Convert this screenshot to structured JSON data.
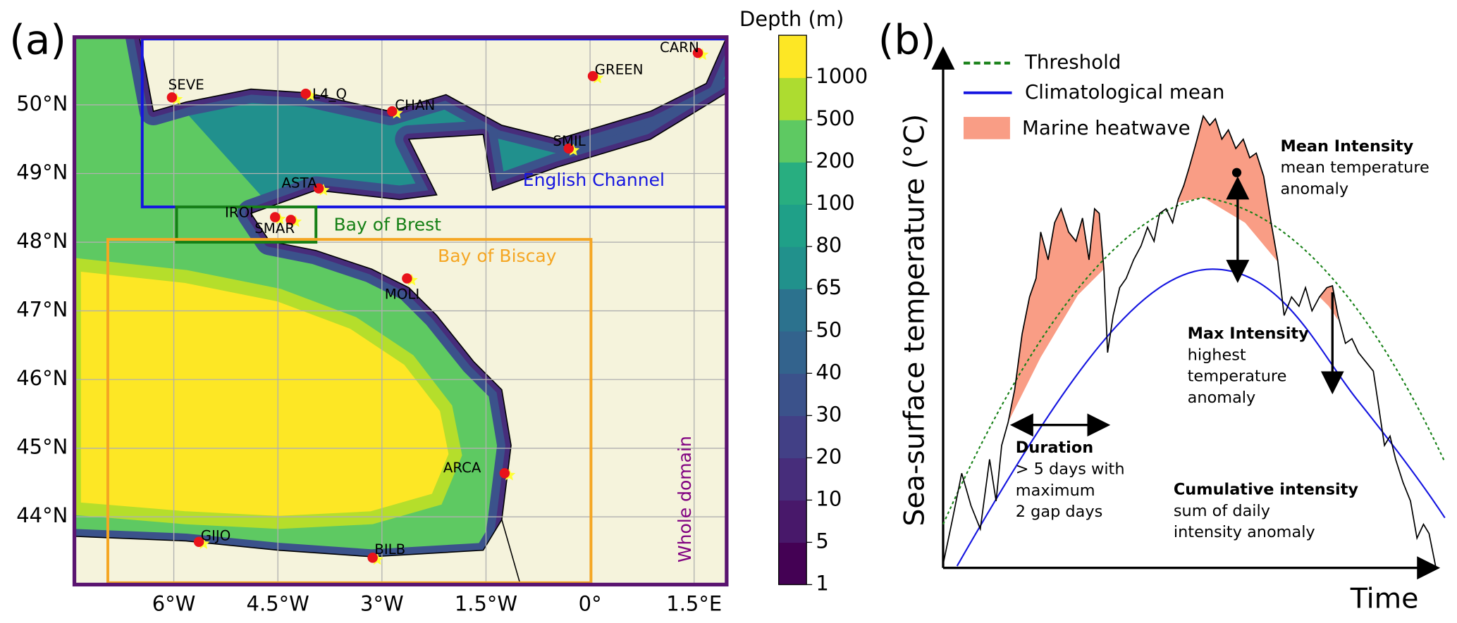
{
  "panel_a": {
    "label": "(a)",
    "colorbar_title": "Depth (m)",
    "colorbar_ticks": [
      1,
      5,
      10,
      20,
      30,
      40,
      50,
      65,
      80,
      100,
      200,
      500,
      1000
    ],
    "lon_ticks": [
      "6°W",
      "4.5°W",
      "3°W",
      "1.5°W",
      "0°",
      "1.5°E"
    ],
    "lat_ticks": [
      "50°N",
      "49°N",
      "48°N",
      "47°N",
      "46°N",
      "45°N",
      "44°N"
    ],
    "stations": [
      "SEVE",
      "L4_Q",
      "CHAN",
      "GREEN",
      "CARN",
      "SMIL",
      "ASTA",
      "IROI",
      "SMAR",
      "MOLI",
      "ARCA",
      "GIJO",
      "BILB"
    ],
    "regions": [
      "English Channel",
      "Bay of Brest",
      "Bay of Biscay",
      "Whole domain"
    ]
  },
  "panel_b": {
    "label": "(b)",
    "y_label": "Sea-surface temperature (°C)",
    "x_label": "Time",
    "legend": [
      "Threshold",
      "Climatological mean",
      "Marine heatwave"
    ],
    "annotations": [
      {
        "title": "Mean Intensity",
        "lines": [
          "mean temperature",
          "anomaly"
        ]
      },
      {
        "title": "Max Intensity",
        "lines": [
          "highest",
          "temperature",
          "anomaly"
        ]
      },
      {
        "title": "Duration",
        "lines": [
          "> 5 days with",
          "maximum",
          "2 gap days"
        ]
      },
      {
        "title": "Cumulative intensity",
        "lines": [
          "sum of daily",
          "intensity anomaly"
        ]
      }
    ]
  }
}
